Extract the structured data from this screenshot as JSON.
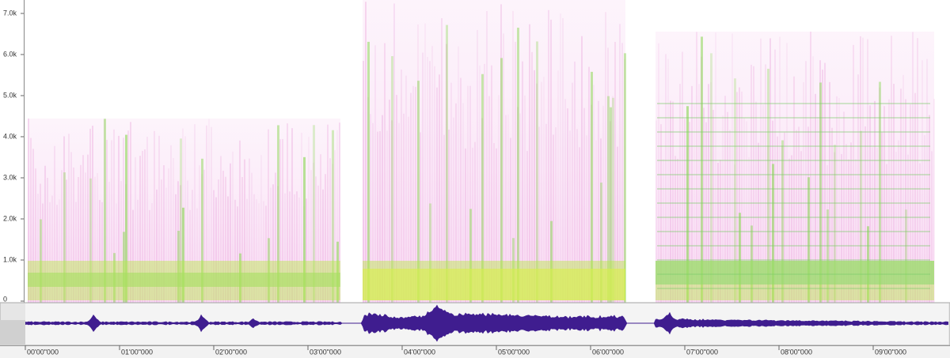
{
  "frequency_axis": {
    "labels": [
      "7.0k",
      "6.0k",
      "5.0k",
      "4.0k",
      "3.0k",
      "2.0k",
      "1.0k",
      "0"
    ]
  },
  "time_axis": {
    "labels": [
      "00'00\"000",
      "01'00\"000",
      "02'00\"000",
      "03'00\"000",
      "04'00\"000",
      "05'00\"000",
      "06'00\"000",
      "07'00\"000",
      "08'00\"000",
      "09'00\"000"
    ]
  }
}
